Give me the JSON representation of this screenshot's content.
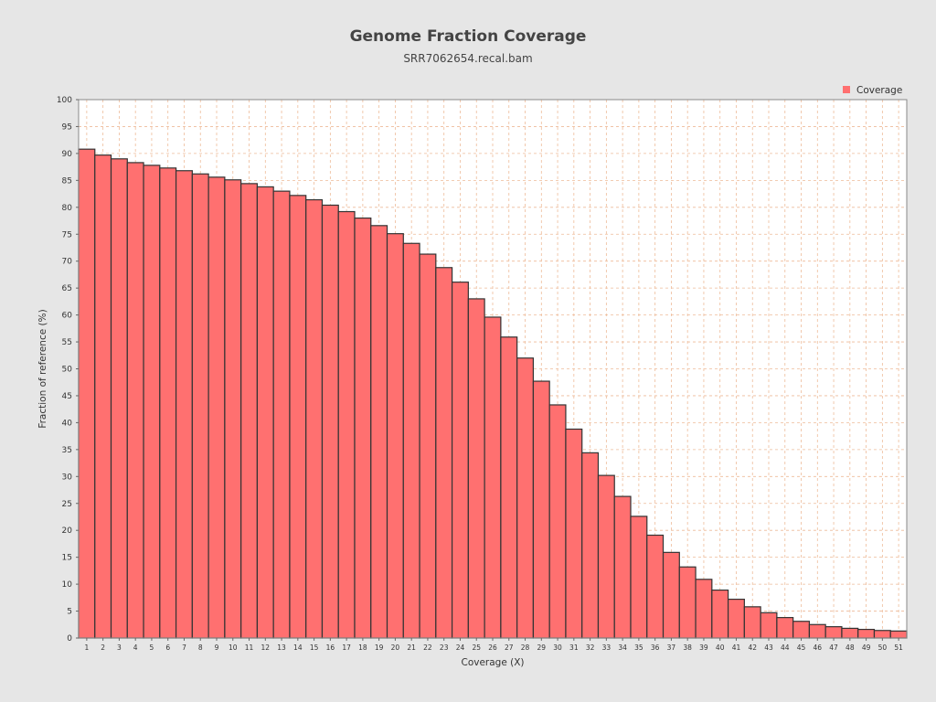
{
  "chart_data": {
    "type": "bar",
    "title": "Genome Fraction Coverage",
    "subtitle": "SRR7062654.recal.bam",
    "xlabel": "Coverage (X)",
    "ylabel": "Fraction of reference (%)",
    "ylim": [
      0,
      100
    ],
    "yticks": [
      0,
      5,
      10,
      15,
      20,
      25,
      30,
      35,
      40,
      45,
      50,
      55,
      60,
      65,
      70,
      75,
      80,
      85,
      90,
      95,
      100
    ],
    "grid": true,
    "legend_position": "top-right",
    "bar_color": "#ff7070",
    "bar_edge_color": "#333333",
    "grid_color": "#eebb99",
    "plot_background": "#ffffff",
    "background": "#e6e6e6",
    "categories": [
      "1",
      "2",
      "3",
      "4",
      "5",
      "6",
      "7",
      "8",
      "9",
      "10",
      "11",
      "12",
      "13",
      "14",
      "15",
      "16",
      "17",
      "18",
      "19",
      "20",
      "21",
      "22",
      "23",
      "24",
      "25",
      "26",
      "27",
      "28",
      "29",
      "30",
      "31",
      "32",
      "33",
      "34",
      "35",
      "36",
      "37",
      "38",
      "39",
      "40",
      "41",
      "42",
      "43",
      "44",
      "45",
      "46",
      "47",
      "48",
      "49",
      "50",
      "51"
    ],
    "series": [
      {
        "name": "Coverage",
        "values": [
          90.8,
          89.7,
          89.0,
          88.3,
          87.8,
          87.3,
          86.8,
          86.2,
          85.6,
          85.1,
          84.4,
          83.8,
          83.0,
          82.2,
          81.4,
          80.4,
          79.2,
          78.0,
          76.6,
          75.1,
          73.3,
          71.3,
          68.8,
          66.1,
          63.0,
          59.6,
          55.9,
          52.0,
          47.7,
          43.3,
          38.8,
          34.4,
          30.2,
          26.3,
          22.6,
          19.1,
          15.9,
          13.2,
          10.9,
          8.9,
          7.2,
          5.8,
          4.7,
          3.8,
          3.1,
          2.5,
          2.1,
          1.8,
          1.6,
          1.4,
          1.3
        ]
      }
    ]
  }
}
